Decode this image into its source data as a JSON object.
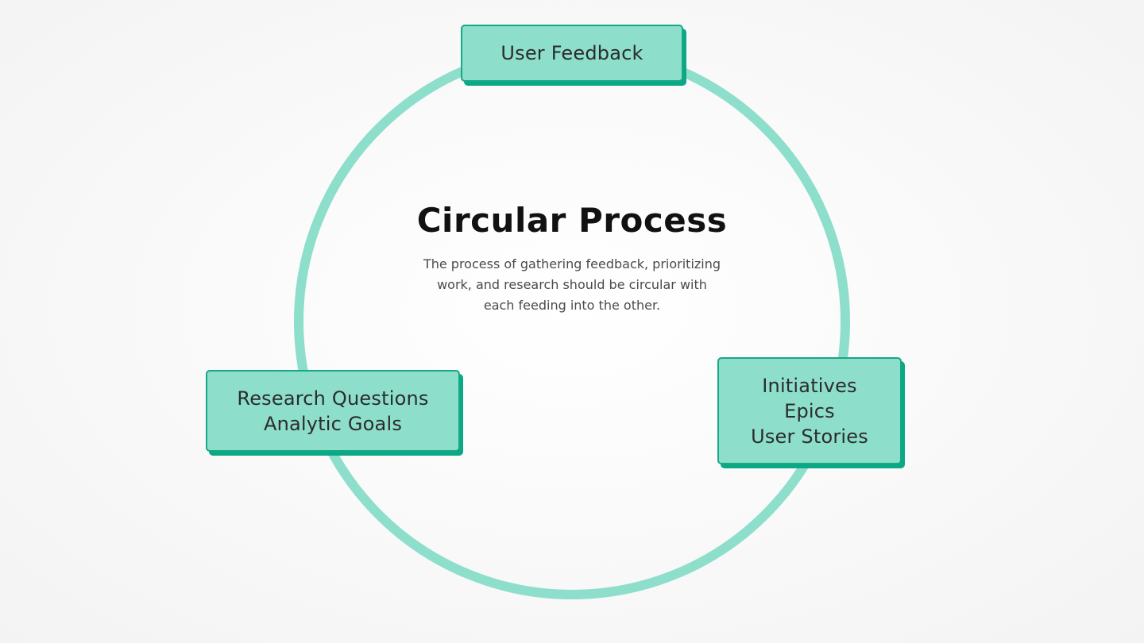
{
  "colors": {
    "ring": "#8ddecb",
    "node_fill": "#8ddecb",
    "node_border": "#16a985",
    "node_shadow": "#0aa885",
    "title": "#111111",
    "description": "#4a4a4a"
  },
  "title": "Circular Process",
  "description_lines": [
    "The process of gathering feedback, prioritizing",
    "work, and research should be circular with",
    "each feeding into the other."
  ],
  "nodes": {
    "top": {
      "lines": [
        "User Feedback"
      ]
    },
    "left": {
      "lines": [
        "Research Questions",
        "Analytic Goals"
      ]
    },
    "right": {
      "lines": [
        "Initiatives",
        "Epics",
        "User Stories"
      ]
    }
  }
}
